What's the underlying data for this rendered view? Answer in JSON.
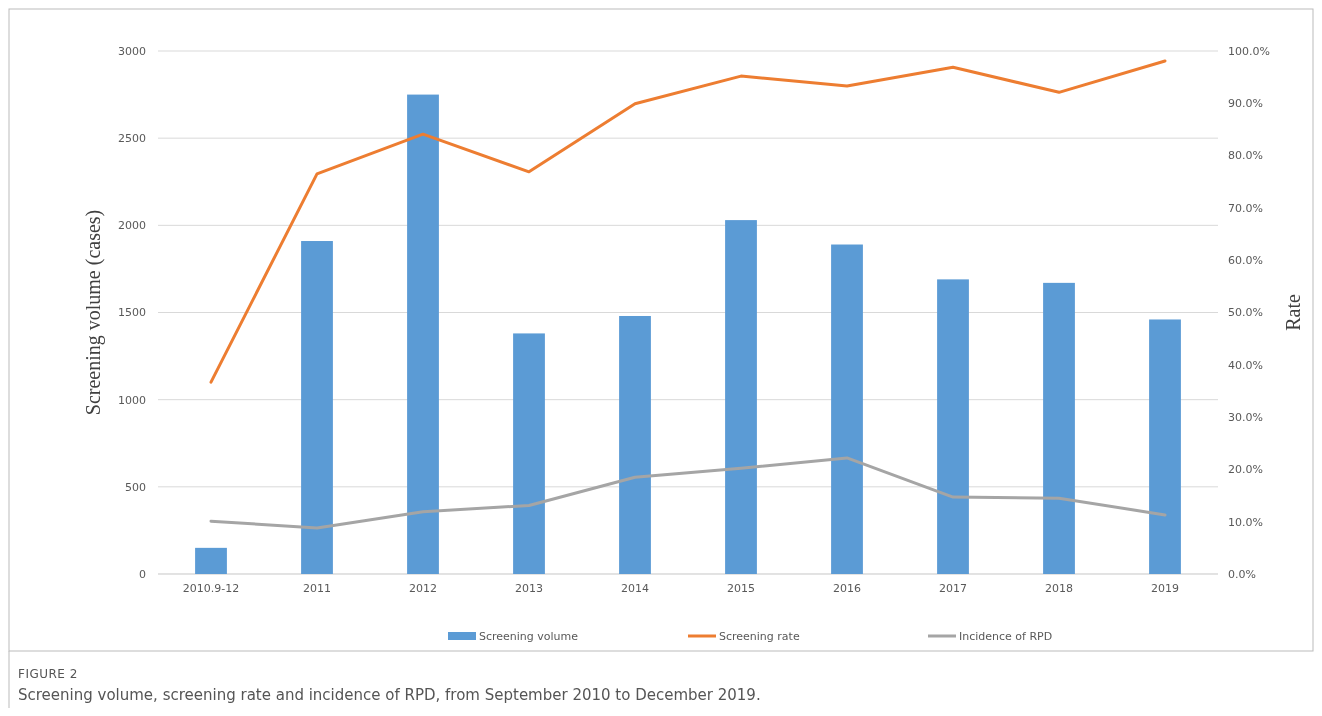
{
  "chart_data": {
    "type": "bar",
    "title": "FIGURE 2",
    "subtitle": "Screening volume, screening rate and incidence of RPD, from September 2010 to December 2019.",
    "ylabel": "Screening volume (cases)",
    "y2label": "Rate",
    "categories": [
      "2010.9-12",
      "2011",
      "2012",
      "2013",
      "2014",
      "2015",
      "2016",
      "2017",
      "2018",
      "2019"
    ],
    "series": [
      {
        "name": "Screening volume",
        "color": "#5b9bd5",
        "values": [
          150,
          1910,
          2750,
          1380,
          1480,
          2030,
          1890,
          1690,
          1670,
          1460
        ]
      },
      {
        "name": "Screening rate",
        "type": "line",
        "axis": "y2",
        "color": "#ed7d31",
        "values": [
          36.7,
          76.5,
          84.1,
          76.9,
          89.9,
          95.2,
          93.3,
          96.9,
          92.1,
          98.1
        ]
      },
      {
        "name": "Incidence of RPD",
        "type": "line",
        "axis": "y2",
        "color": "#a5a5a5",
        "values": [
          10.1,
          8.8,
          11.9,
          13.1,
          18.5,
          20.2,
          22.2,
          14.7,
          14.5,
          11.3
        ]
      }
    ],
    "ylim": [
      0,
      3000
    ],
    "yticks": [
      0,
      500,
      1000,
      1500,
      2000,
      2500,
      3000
    ],
    "y2lim": [
      0,
      100
    ],
    "y2ticks": [
      {
        "value": 0,
        "label": "0.0%"
      },
      {
        "value": 10,
        "label": "10.0%"
      },
      {
        "value": 20,
        "label": "20.0%"
      },
      {
        "value": 30,
        "label": "30.0%"
      },
      {
        "value": 40,
        "label": "40.0%"
      },
      {
        "value": 50,
        "label": "50.0%"
      },
      {
        "value": 60,
        "label": "60.0%"
      },
      {
        "value": 70,
        "label": "70.0%"
      },
      {
        "value": 80,
        "label": "80.0%"
      },
      {
        "value": 90,
        "label": "90.0%"
      },
      {
        "value": 100,
        "label": "100.0%"
      }
    ],
    "grid": "y",
    "legend": "bottom"
  }
}
